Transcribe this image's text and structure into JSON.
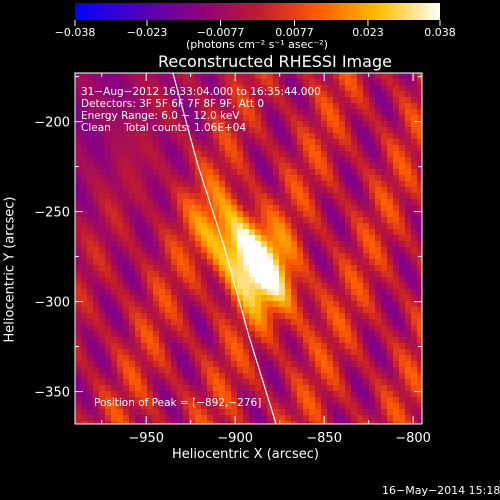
{
  "chart_data": {
    "type": "heatmap",
    "title": "Reconstructed RHESSI Image",
    "xlabel": "Heliocentric X (arcsec)",
    "ylabel": "Heliocentric Y (arcsec)",
    "xlim": [
      -990,
      -795
    ],
    "ylim": [
      -368,
      -173
    ],
    "x_ticks": [
      -950,
      -900,
      -850,
      -800
    ],
    "x_tick_labels": [
      "−950",
      "−900",
      "−850",
      "−800"
    ],
    "y_ticks": [
      -200,
      -250,
      -300,
      -350
    ],
    "y_tick_labels": [
      "−200",
      "−250",
      "−300",
      "−350"
    ],
    "colorbar": {
      "min": -0.038,
      "max": 0.038,
      "tick_values": [
        -0.038,
        -0.023,
        -0.0077,
        0.0077,
        0.023,
        0.038
      ],
      "tick_labels": [
        "−0.038",
        "−0.023",
        "−0.0077",
        "0.0077",
        "0.023",
        "0.038"
      ],
      "unit_label": "(photons cm⁻² s⁻¹ asec⁻²)",
      "colors": [
        "#0000ff",
        "#4a00c0",
        "#8a0080",
        "#c01a30",
        "#ff5a00",
        "#ffc000",
        "#ffffff"
      ]
    },
    "annotations": [
      "31−Aug−2012 16:33:04.000 to 16:35:44.000",
      "Detectors: 3F 5F 6F 7F 8F 9F, Att 0",
      "Energy Range: 6.0 − 12.0 keV",
      "Clean    Total counts: 1.06E+04"
    ],
    "peak": {
      "label": "Position of Peak = [−892,−276]",
      "x": -892,
      "y": -276
    },
    "limb_curve": [
      {
        "x": -935,
        "y": -173
      },
      {
        "x": -921,
        "y": -224
      },
      {
        "x": -906,
        "y": -270
      },
      {
        "x": -892,
        "y": -320
      },
      {
        "x": -877,
        "y": -368
      }
    ]
  },
  "footer": {
    "timestamp": "16−May−2014 15:18"
  }
}
